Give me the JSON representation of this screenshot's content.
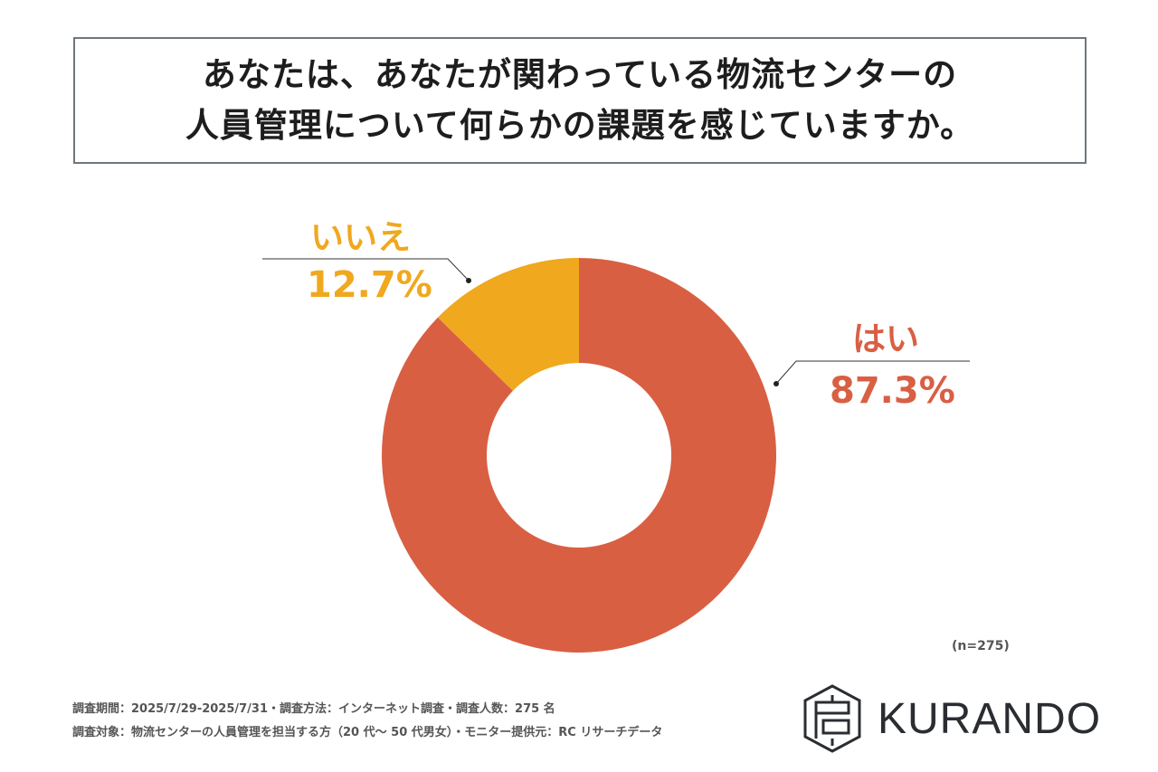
{
  "title": {
    "line1": "あなたは、あなたが関わっている物流センターの",
    "line2": "人員管理について何らかの課題を感じていますか。"
  },
  "chart_data": {
    "type": "pie",
    "donut": true,
    "categories": [
      "はい",
      "いいえ"
    ],
    "values": [
      87.3,
      12.7
    ],
    "value_labels": [
      "87.3%",
      "12.7%"
    ],
    "colors": [
      "#D95F43",
      "#F0A81E"
    ],
    "sample_size": "(n=275)"
  },
  "footer": {
    "line1": "調査期間：2025/7/29-2025/7/31・調査方法：インターネット調査・調査人数：275 名",
    "line2": "調査対象：物流センターの人員管理を担当する方（20 代～ 50 代男女）・モニター提供元：RC リサーチデータ"
  },
  "logo": {
    "text": "KURANDO",
    "icon": "kurando-hexagon-logo-icon"
  }
}
